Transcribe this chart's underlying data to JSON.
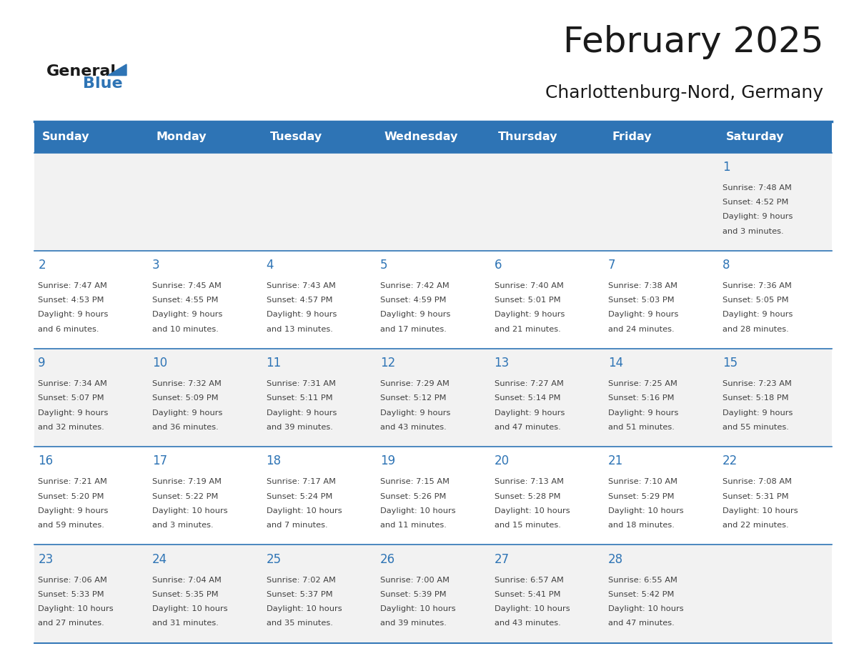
{
  "title": "February 2025",
  "subtitle": "Charlottenburg-Nord, Germany",
  "days_of_week": [
    "Sunday",
    "Monday",
    "Tuesday",
    "Wednesday",
    "Thursday",
    "Friday",
    "Saturday"
  ],
  "header_bg": "#2E74B5",
  "header_text": "#FFFFFF",
  "row_bg_odd": "#F2F2F2",
  "row_bg_even": "#FFFFFF",
  "cell_border": "#2E74B5",
  "day_number_color": "#2E74B5",
  "text_color": "#404040",
  "calendar": [
    [
      null,
      null,
      null,
      null,
      null,
      null,
      {
        "day": 1,
        "sunrise": "7:48 AM",
        "sunset": "4:52 PM",
        "daylight": "9 hours and 3 minutes."
      }
    ],
    [
      {
        "day": 2,
        "sunrise": "7:47 AM",
        "sunset": "4:53 PM",
        "daylight": "9 hours and 6 minutes."
      },
      {
        "day": 3,
        "sunrise": "7:45 AM",
        "sunset": "4:55 PM",
        "daylight": "9 hours and 10 minutes."
      },
      {
        "day": 4,
        "sunrise": "7:43 AM",
        "sunset": "4:57 PM",
        "daylight": "9 hours and 13 minutes."
      },
      {
        "day": 5,
        "sunrise": "7:42 AM",
        "sunset": "4:59 PM",
        "daylight": "9 hours and 17 minutes."
      },
      {
        "day": 6,
        "sunrise": "7:40 AM",
        "sunset": "5:01 PM",
        "daylight": "9 hours and 21 minutes."
      },
      {
        "day": 7,
        "sunrise": "7:38 AM",
        "sunset": "5:03 PM",
        "daylight": "9 hours and 24 minutes."
      },
      {
        "day": 8,
        "sunrise": "7:36 AM",
        "sunset": "5:05 PM",
        "daylight": "9 hours and 28 minutes."
      }
    ],
    [
      {
        "day": 9,
        "sunrise": "7:34 AM",
        "sunset": "5:07 PM",
        "daylight": "9 hours and 32 minutes."
      },
      {
        "day": 10,
        "sunrise": "7:32 AM",
        "sunset": "5:09 PM",
        "daylight": "9 hours and 36 minutes."
      },
      {
        "day": 11,
        "sunrise": "7:31 AM",
        "sunset": "5:11 PM",
        "daylight": "9 hours and 39 minutes."
      },
      {
        "day": 12,
        "sunrise": "7:29 AM",
        "sunset": "5:12 PM",
        "daylight": "9 hours and 43 minutes."
      },
      {
        "day": 13,
        "sunrise": "7:27 AM",
        "sunset": "5:14 PM",
        "daylight": "9 hours and 47 minutes."
      },
      {
        "day": 14,
        "sunrise": "7:25 AM",
        "sunset": "5:16 PM",
        "daylight": "9 hours and 51 minutes."
      },
      {
        "day": 15,
        "sunrise": "7:23 AM",
        "sunset": "5:18 PM",
        "daylight": "9 hours and 55 minutes."
      }
    ],
    [
      {
        "day": 16,
        "sunrise": "7:21 AM",
        "sunset": "5:20 PM",
        "daylight": "9 hours and 59 minutes."
      },
      {
        "day": 17,
        "sunrise": "7:19 AM",
        "sunset": "5:22 PM",
        "daylight": "10 hours and 3 minutes."
      },
      {
        "day": 18,
        "sunrise": "7:17 AM",
        "sunset": "5:24 PM",
        "daylight": "10 hours and 7 minutes."
      },
      {
        "day": 19,
        "sunrise": "7:15 AM",
        "sunset": "5:26 PM",
        "daylight": "10 hours and 11 minutes."
      },
      {
        "day": 20,
        "sunrise": "7:13 AM",
        "sunset": "5:28 PM",
        "daylight": "10 hours and 15 minutes."
      },
      {
        "day": 21,
        "sunrise": "7:10 AM",
        "sunset": "5:29 PM",
        "daylight": "10 hours and 18 minutes."
      },
      {
        "day": 22,
        "sunrise": "7:08 AM",
        "sunset": "5:31 PM",
        "daylight": "10 hours and 22 minutes."
      }
    ],
    [
      {
        "day": 23,
        "sunrise": "7:06 AM",
        "sunset": "5:33 PM",
        "daylight": "10 hours and 27 minutes."
      },
      {
        "day": 24,
        "sunrise": "7:04 AM",
        "sunset": "5:35 PM",
        "daylight": "10 hours and 31 minutes."
      },
      {
        "day": 25,
        "sunrise": "7:02 AM",
        "sunset": "5:37 PM",
        "daylight": "10 hours and 35 minutes."
      },
      {
        "day": 26,
        "sunrise": "7:00 AM",
        "sunset": "5:39 PM",
        "daylight": "10 hours and 39 minutes."
      },
      {
        "day": 27,
        "sunrise": "6:57 AM",
        "sunset": "5:41 PM",
        "daylight": "10 hours and 43 minutes."
      },
      {
        "day": 28,
        "sunrise": "6:55 AM",
        "sunset": "5:42 PM",
        "daylight": "10 hours and 47 minutes."
      },
      null
    ]
  ],
  "logo_text_general": "General",
  "logo_text_blue": "Blue",
  "logo_color_general": "#1A1A1A",
  "logo_color_blue": "#2E74B5",
  "logo_triangle_color": "#2E74B5"
}
